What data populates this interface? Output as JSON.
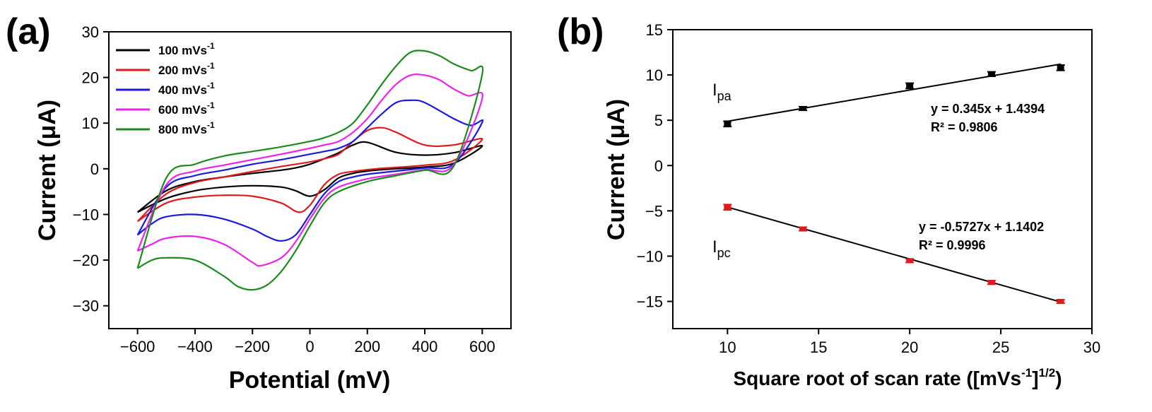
{
  "panels": {
    "a": {
      "label": "(a)"
    },
    "b": {
      "label": "(b)"
    }
  },
  "chart_data": [
    {
      "type": "line",
      "title": "",
      "xlabel": "Potential (mV)",
      "ylabel": "Current (μA)",
      "xlim": [
        -700,
        700
      ],
      "ylim": [
        -35,
        30
      ],
      "xticks": [
        -600,
        -400,
        -200,
        0,
        200,
        400,
        600
      ],
      "yticks": [
        -30,
        -20,
        -10,
        0,
        10,
        20,
        30
      ],
      "xtick_labels": [
        "−600",
        "−400",
        "−200",
        "0",
        "200",
        "400",
        "600"
      ],
      "ytick_labels": [
        "−30",
        "−20",
        "−10",
        "0",
        "10",
        "20",
        "30"
      ],
      "grid": false,
      "legend_position": "top-left",
      "series": [
        {
          "name": "100 mVs-1",
          "legend_main": "100 mVs",
          "legend_sup": "-1",
          "color": "#000000",
          "x": [
            -600,
            -500,
            -400,
            -300,
            -200,
            -100,
            -50,
            0,
            50,
            100,
            150,
            200,
            250,
            300,
            400,
            500,
            600,
            500,
            400,
            300,
            200,
            150,
            100,
            50,
            0,
            -50,
            -100,
            -200,
            -300,
            -400,
            -500,
            -600
          ],
          "y": [
            -9.5,
            -6.5,
            -4.8,
            -4.0,
            -3.7,
            -4.0,
            -4.8,
            -6.0,
            -4.6,
            -2.0,
            -1.0,
            -0.5,
            -0.2,
            0.0,
            0.4,
            1.2,
            5.0,
            3.5,
            3.0,
            3.6,
            5.8,
            5.2,
            3.5,
            2.2,
            1.0,
            0.2,
            -0.3,
            -1.0,
            -1.8,
            -2.8,
            -4.8,
            -9.5
          ]
        },
        {
          "name": "200 mVs-1",
          "legend_main": "200 mVs",
          "legend_sup": "-1",
          "color": "#e0191d",
          "x": [
            -600,
            -500,
            -400,
            -300,
            -200,
            -100,
            -40,
            0,
            50,
            100,
            150,
            200,
            250,
            300,
            400,
            500,
            600,
            500,
            400,
            300,
            250,
            200,
            150,
            100,
            50,
            0,
            -100,
            -200,
            -300,
            -400,
            -500,
            -600
          ],
          "y": [
            -11.5,
            -7.5,
            -6.2,
            -5.8,
            -6.0,
            -7.5,
            -9.5,
            -8.0,
            -3.5,
            -1.2,
            -0.6,
            -0.2,
            0.1,
            0.3,
            0.8,
            1.8,
            6.5,
            5.2,
            5.2,
            8.0,
            9.0,
            8.4,
            6.0,
            3.2,
            2.2,
            1.5,
            0.5,
            -0.6,
            -1.8,
            -3.0,
            -5.5,
            -11.5
          ]
        },
        {
          "name": "400 mVs-1",
          "legend_main": "400 mVs",
          "legend_sup": "-1",
          "color": "#1a1adc",
          "x": [
            -600,
            -550,
            -500,
            -400,
            -300,
            -200,
            -150,
            -100,
            -50,
            0,
            50,
            100,
            150,
            200,
            300,
            400,
            500,
            600,
            560,
            500,
            400,
            350,
            300,
            250,
            200,
            150,
            100,
            50,
            0,
            -100,
            -200,
            -300,
            -400,
            -500,
            -600
          ],
          "y": [
            -14.5,
            -12.0,
            -10.5,
            -10.0,
            -11.0,
            -13.2,
            -14.8,
            -15.8,
            -14.5,
            -10.0,
            -5.5,
            -2.8,
            -1.8,
            -1.2,
            -0.5,
            0.2,
            1.0,
            10.2,
            9.5,
            11.0,
            14.5,
            15.0,
            14.5,
            12.0,
            9.0,
            6.0,
            4.5,
            3.8,
            3.2,
            2.0,
            1.0,
            -0.3,
            -1.5,
            -4.0,
            -14.5
          ]
        },
        {
          "name": "600 mVs-1",
          "legend_main": "600 mVs",
          "legend_sup": "-1",
          "color": "#ee22ee",
          "x": [
            -600,
            -550,
            -500,
            -400,
            -300,
            -200,
            -170,
            -100,
            -50,
            0,
            50,
            100,
            200,
            300,
            400,
            500,
            600,
            550,
            500,
            450,
            400,
            350,
            300,
            250,
            200,
            150,
            100,
            50,
            0,
            -100,
            -200,
            -300,
            -400,
            -500,
            -600
          ],
          "y": [
            -18.0,
            -16.5,
            -15.2,
            -14.8,
            -16.5,
            -20.5,
            -21.2,
            -19.5,
            -16.0,
            -11.0,
            -6.5,
            -4.0,
            -2.2,
            -1.2,
            -0.2,
            0.8,
            15.5,
            16.0,
            17.5,
            19.5,
            20.5,
            20.5,
            18.5,
            15.0,
            11.0,
            8.0,
            6.0,
            5.2,
            4.5,
            3.2,
            2.0,
            0.8,
            -0.5,
            -3.5,
            -18.0
          ]
        },
        {
          "name": "800 mVs-1",
          "legend_main": "800 mVs",
          "legend_sup": "-1",
          "color": "#1a8c1a",
          "x": [
            -600,
            -550,
            -500,
            -400,
            -300,
            -250,
            -200,
            -150,
            -100,
            -50,
            0,
            50,
            100,
            200,
            300,
            400,
            500,
            600,
            560,
            500,
            450,
            400,
            350,
            300,
            250,
            200,
            150,
            100,
            50,
            0,
            -100,
            -200,
            -300,
            -400,
            -500,
            -600
          ],
          "y": [
            -21.8,
            -20.0,
            -19.5,
            -20.0,
            -23.5,
            -25.8,
            -26.5,
            -25.5,
            -22.5,
            -18.0,
            -12.5,
            -7.5,
            -5.0,
            -2.8,
            -1.5,
            -0.3,
            0.5,
            20.8,
            21.5,
            23.0,
            24.8,
            25.8,
            25.5,
            22.5,
            18.5,
            14.0,
            10.0,
            8.0,
            6.8,
            6.0,
            4.8,
            3.8,
            2.8,
            1.0,
            -2.0,
            -21.8
          ]
        }
      ]
    },
    {
      "type": "scatter",
      "title": "",
      "xlabel_main": "Square root of scan rate ([mVs",
      "xlabel_sup1": "-1",
      "xlabel_mid": "]",
      "xlabel_sup2": "1/2",
      "xlabel_end": ")",
      "ylabel": "Current (μA)",
      "xlim": [
        7,
        30
      ],
      "ylim": [
        -18,
        15
      ],
      "xticks": [
        10,
        15,
        20,
        25,
        30
      ],
      "yticks": [
        -15,
        -10,
        -5,
        0,
        5,
        10,
        15
      ],
      "xtick_labels": [
        "10",
        "15",
        "20",
        "25",
        "30"
      ],
      "ytick_labels": [
        "−15",
        "−10",
        "−5",
        "0",
        "5",
        "10",
        "15"
      ],
      "grid": false,
      "series": [
        {
          "name": "Ipa",
          "label_main": "I",
          "label_sub": "pa",
          "color": "#000000",
          "x": [
            10.0,
            14.14,
            20.0,
            24.49,
            28.28
          ],
          "y": [
            4.6,
            6.3,
            8.8,
            10.1,
            10.8
          ],
          "error": [
            0.3,
            0.2,
            0.3,
            0.25,
            0.3
          ],
          "fit": {
            "slope": 0.345,
            "intercept": 1.4394,
            "x_range": [
              10,
              28.3
            ]
          },
          "equation": "y = 0.345x + 1.4394",
          "r2": "R² = 0.9806"
        },
        {
          "name": "Ipc",
          "label_main": "I",
          "label_sub": "pc",
          "color": "#e0191d",
          "x": [
            10.0,
            14.14,
            20.0,
            24.49,
            28.28
          ],
          "y": [
            -4.6,
            -7.0,
            -10.5,
            -12.9,
            -15.0
          ],
          "error": [
            0.3,
            0.2,
            0.2,
            0.2,
            0.2
          ],
          "fit": {
            "slope": -0.5727,
            "intercept": 1.1402,
            "x_range": [
              10,
              28.3
            ]
          },
          "equation": "y = -0.5727x + 1.1402",
          "r2": "R² = 0.9996"
        }
      ]
    }
  ]
}
